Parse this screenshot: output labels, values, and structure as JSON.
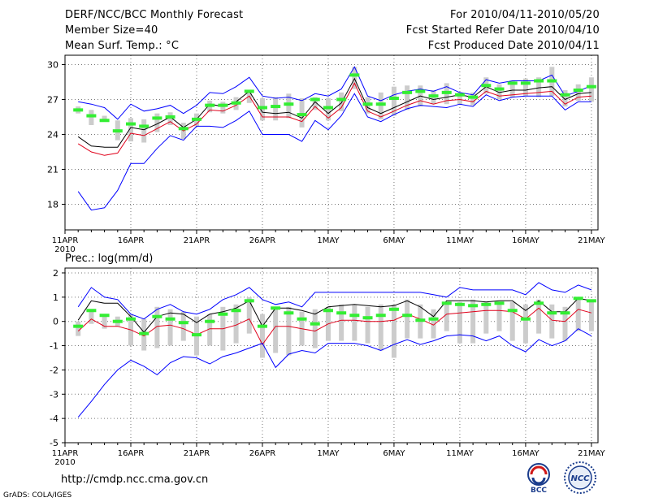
{
  "header": {
    "title": "DERF/NCC/BCC Monthly Forecast",
    "member_size": "Member Size=40",
    "variable": "Mean Surf. Temp.: °C",
    "forecast_period": "For 2010/04/11-2010/05/20",
    "start_date": "Fcst Started Refer Date 2010/04/10",
    "produced_date": "Fcst Produced Date 2010/04/11"
  },
  "footer": {
    "url": "http://cmdp.ncc.cma.gov.cn",
    "credit": "GrADS: COLA/IGES",
    "logo_bcc": "BCC",
    "logo_ncc": "NCC"
  },
  "colors": {
    "envelope": "#0000ff",
    "mean": "#000000",
    "median": "#e0001a",
    "box": "#cccccc",
    "marker": "#33ee33",
    "grid": "#777777"
  },
  "chart_data": [
    {
      "type": "line",
      "panel": "temperature",
      "title": "",
      "ylabel": "",
      "ylim": [
        15.8,
        30.8
      ],
      "yticks": [
        "18",
        "21",
        "24",
        "27",
        "30"
      ],
      "ytick_values": [
        18,
        21,
        24,
        27,
        30
      ],
      "xlim": [
        0,
        40.5
      ],
      "xticks": [
        {
          "x": 0,
          "label": "11APR",
          "sublabel": "2010"
        },
        {
          "x": 5,
          "label": "16APR"
        },
        {
          "x": 10,
          "label": "21APR"
        },
        {
          "x": 15,
          "label": "26APR"
        },
        {
          "x": 20,
          "label": "1MAY"
        },
        {
          "x": 25,
          "label": "6MAY"
        },
        {
          "x": 30,
          "label": "11MAY"
        },
        {
          "x": 35,
          "label": "16MAY"
        },
        {
          "x": 40,
          "label": "21MAY"
        }
      ],
      "days": [
        1,
        2,
        3,
        4,
        5,
        6,
        7,
        8,
        9,
        10,
        11,
        12,
        13,
        14,
        15,
        16,
        17,
        18,
        19,
        20,
        21,
        22,
        23,
        24,
        25,
        26,
        27,
        28,
        29,
        30,
        31,
        32,
        33,
        34,
        35,
        36,
        37,
        38,
        39,
        40
      ],
      "series": [
        {
          "name": "ensemble max",
          "color": "#0000ff",
          "values": [
            26.8,
            26.6,
            26.3,
            25.3,
            26.6,
            26.0,
            26.2,
            26.5,
            25.8,
            26.5,
            27.6,
            27.5,
            28.1,
            28.9,
            27.3,
            27.1,
            27.2,
            26.9,
            27.5,
            27.3,
            27.9,
            29.8,
            27.3,
            26.9,
            27.4,
            27.7,
            27.9,
            27.7,
            28.1,
            27.6,
            27.4,
            28.7,
            28.4,
            28.6,
            28.6,
            28.6,
            29.1,
            27.3,
            27.7,
            28.2
          ]
        },
        {
          "name": "ensemble mean",
          "color": "#000000",
          "values": [
            23.8,
            23.0,
            22.9,
            22.9,
            24.6,
            24.4,
            24.9,
            25.5,
            24.6,
            25.3,
            26.6,
            26.4,
            26.8,
            27.7,
            25.9,
            25.8,
            25.9,
            25.4,
            26.8,
            25.8,
            26.7,
            28.8,
            26.3,
            25.8,
            26.3,
            26.8,
            27.3,
            27.0,
            27.2,
            27.4,
            27.2,
            28.1,
            27.6,
            27.8,
            27.8,
            28.0,
            28.1,
            27.0,
            27.5,
            27.6
          ]
        },
        {
          "name": "ensemble median",
          "color": "#e0001a",
          "values": [
            23.2,
            22.5,
            22.2,
            22.4,
            24.1,
            23.9,
            24.5,
            25.1,
            24.3,
            24.9,
            26.1,
            26.0,
            26.5,
            27.3,
            25.5,
            25.5,
            25.5,
            25.1,
            26.4,
            25.4,
            26.3,
            28.4,
            26.0,
            25.5,
            26.0,
            26.5,
            26.9,
            26.6,
            26.9,
            27.0,
            26.8,
            27.7,
            27.3,
            27.4,
            27.5,
            27.6,
            27.7,
            26.6,
            27.2,
            27.3
          ]
        },
        {
          "name": "ensemble min",
          "color": "#0000ff",
          "values": [
            19.1,
            17.5,
            17.7,
            19.2,
            21.5,
            21.5,
            22.8,
            23.9,
            23.5,
            24.7,
            24.7,
            24.6,
            25.2,
            26.0,
            24.0,
            24.0,
            24.0,
            23.4,
            25.2,
            24.4,
            25.6,
            27.5,
            25.5,
            25.1,
            25.7,
            26.2,
            26.5,
            26.4,
            26.3,
            26.6,
            26.4,
            27.4,
            26.9,
            27.2,
            27.3,
            27.3,
            27.3,
            26.1,
            26.8,
            26.8
          ]
        }
      ],
      "boxes": {
        "lower": [
          25.8,
          24.8,
          25.1,
          23.5,
          23.4,
          23.3,
          24.2,
          24.8,
          23.6,
          24.7,
          25.9,
          25.8,
          26.1,
          26.7,
          25.2,
          25.2,
          25.4,
          24.6,
          26.1,
          25.2,
          26.0,
          27.9,
          25.8,
          25.3,
          25.6,
          26.1,
          26.4,
          26.6,
          26.6,
          26.6,
          26.5,
          27.5,
          27.0,
          27.2,
          27.3,
          27.2,
          27.3,
          26.4,
          26.9,
          26.8
        ],
        "upper": [
          26.4,
          26.1,
          25.6,
          25.2,
          25.4,
          25.3,
          25.8,
          25.9,
          25.0,
          25.8,
          26.9,
          26.8,
          27.2,
          27.8,
          27.1,
          27.2,
          27.5,
          27.1,
          27.2,
          27.1,
          27.6,
          29.8,
          27.2,
          27.6,
          28.1,
          28.2,
          28.2,
          27.8,
          28.4,
          27.6,
          27.6,
          28.9,
          28.3,
          28.6,
          28.8,
          28.9,
          29.8,
          27.8,
          28.3,
          28.9
        ]
      },
      "markers": [
        26.1,
        25.6,
        25.2,
        24.3,
        24.9,
        24.7,
        25.4,
        25.5,
        24.5,
        25.3,
        26.5,
        26.5,
        26.7,
        27.7,
        26.3,
        26.4,
        26.6,
        25.7,
        27.0,
        26.3,
        27.0,
        29.1,
        26.6,
        26.6,
        27.1,
        27.6,
        27.7,
        27.3,
        27.6,
        27.4,
        27.2,
        28.2,
        27.9,
        28.4,
        28.4,
        28.6,
        28.6,
        27.4,
        27.8,
        28.1
      ]
    },
    {
      "type": "line",
      "panel": "precipitation",
      "title": "Prec.: log(mm/d)",
      "ylabel": "",
      "ylim": [
        -5,
        2.2
      ],
      "yticks": [
        "-5",
        "-4",
        "-3",
        "-2",
        "-1",
        "0",
        "1",
        "2"
      ],
      "ytick_values": [
        -5,
        -4,
        -3,
        -2,
        -1,
        0,
        1,
        2
      ],
      "xlim": [
        0,
        40.5
      ],
      "xticks": [
        {
          "x": 0,
          "label": "11APR",
          "sublabel": "2010"
        },
        {
          "x": 5,
          "label": "16APR"
        },
        {
          "x": 10,
          "label": "21APR"
        },
        {
          "x": 15,
          "label": "26APR"
        },
        {
          "x": 20,
          "label": "1MAY"
        },
        {
          "x": 25,
          "label": "6MAY"
        },
        {
          "x": 30,
          "label": "11MAY"
        },
        {
          "x": 35,
          "label": "16MAY"
        },
        {
          "x": 40,
          "label": "21MAY"
        }
      ],
      "days": [
        1,
        2,
        3,
        4,
        5,
        6,
        7,
        8,
        9,
        10,
        11,
        12,
        13,
        14,
        15,
        16,
        17,
        18,
        19,
        20,
        21,
        22,
        23,
        24,
        25,
        26,
        27,
        28,
        29,
        30,
        31,
        32,
        33,
        34,
        35,
        36,
        37,
        38,
        39,
        40
      ],
      "series": [
        {
          "name": "ensemble max",
          "color": "#0000ff",
          "values": [
            0.6,
            1.4,
            1.0,
            0.9,
            0.3,
            0.1,
            0.5,
            0.7,
            0.4,
            0.3,
            0.5,
            0.9,
            1.1,
            1.4,
            0.9,
            0.7,
            0.8,
            0.6,
            1.2,
            1.2,
            1.2,
            1.2,
            1.2,
            1.2,
            1.2,
            1.2,
            1.2,
            1.1,
            1.0,
            1.4,
            1.3,
            1.3,
            1.3,
            1.3,
            1.1,
            1.6,
            1.3,
            1.2,
            1.5,
            1.3
          ]
        },
        {
          "name": "ensemble mean",
          "color": "#000000",
          "values": [
            0.05,
            0.85,
            0.75,
            0.75,
            0.2,
            -0.45,
            0.2,
            0.35,
            0.3,
            -0.05,
            0.3,
            0.4,
            0.55,
            0.85,
            -0.2,
            0.55,
            0.55,
            0.45,
            0.3,
            0.6,
            0.65,
            0.7,
            0.65,
            0.6,
            0.65,
            0.85,
            0.6,
            0.2,
            0.85,
            0.85,
            0.85,
            0.8,
            0.85,
            0.85,
            0.45,
            0.85,
            0.4,
            0.4,
            0.95,
            0.85
          ]
        },
        {
          "name": "ensemble median",
          "color": "#e0001a",
          "values": [
            -0.4,
            0.1,
            -0.2,
            -0.2,
            -0.35,
            -0.6,
            -0.2,
            -0.15,
            -0.3,
            -0.55,
            -0.3,
            -0.3,
            -0.15,
            0.1,
            -0.95,
            -0.2,
            -0.2,
            -0.3,
            -0.4,
            -0.1,
            0.05,
            0.05,
            0.0,
            0.0,
            0.05,
            0.3,
            0.1,
            -0.15,
            0.3,
            0.35,
            0.4,
            0.45,
            0.45,
            0.4,
            0.1,
            0.55,
            0.05,
            0.0,
            0.5,
            0.35
          ]
        },
        {
          "name": "ensemble min",
          "color": "#0000ff",
          "values": [
            -3.95,
            -3.3,
            -2.6,
            -2.0,
            -1.6,
            -1.85,
            -2.2,
            -1.7,
            -1.45,
            -1.5,
            -1.75,
            -1.45,
            -1.3,
            -1.1,
            -0.9,
            -1.9,
            -1.35,
            -1.2,
            -1.3,
            -0.9,
            -0.9,
            -0.9,
            -1.0,
            -1.2,
            -0.95,
            -0.75,
            -0.95,
            -0.8,
            -0.6,
            -0.55,
            -0.6,
            -0.8,
            -0.6,
            -1.0,
            -1.25,
            -0.75,
            -1.0,
            -0.8,
            -0.3,
            -0.6
          ]
        }
      ],
      "boxes": {
        "lower": [
          -0.6,
          -0.1,
          -0.3,
          -0.2,
          -1.0,
          -1.2,
          -1.1,
          -1.0,
          -0.8,
          -1.4,
          -1.0,
          -1.2,
          -0.9,
          -0.5,
          -1.5,
          -1.3,
          -1.4,
          -1.0,
          -1.1,
          -0.8,
          -0.8,
          -0.8,
          -0.9,
          -1.2,
          -1.5,
          -0.7,
          -0.7,
          -0.7,
          -0.4,
          -0.9,
          -0.9,
          -0.5,
          -0.4,
          -0.8,
          -0.9,
          -0.5,
          -0.7,
          -0.8,
          -0.4,
          -0.4
        ],
        "upper": [
          0.0,
          0.5,
          0.2,
          0.2,
          0.3,
          0.1,
          0.6,
          0.5,
          0.4,
          0.2,
          0.3,
          0.6,
          0.7,
          1.0,
          0.3,
          0.6,
          0.6,
          0.4,
          0.5,
          0.6,
          0.7,
          0.7,
          0.6,
          0.7,
          0.7,
          0.9,
          0.7,
          0.5,
          0.8,
          0.8,
          0.9,
          0.8,
          0.8,
          0.8,
          0.7,
          0.9,
          0.7,
          0.6,
          1.0,
          0.8
        ]
      },
      "markers": [
        -0.2,
        0.45,
        0.25,
        0.0,
        0.1,
        -0.5,
        0.2,
        0.1,
        -0.05,
        -0.55,
        0.0,
        0.3,
        0.45,
        0.85,
        -0.2,
        0.55,
        0.35,
        0.1,
        -0.1,
        0.45,
        0.35,
        0.25,
        0.15,
        0.25,
        0.5,
        0.25,
        0.05,
        0.1,
        0.75,
        0.7,
        0.65,
        0.7,
        0.75,
        0.45,
        0.1,
        0.75,
        0.35,
        0.35,
        0.95,
        0.85
      ]
    }
  ]
}
